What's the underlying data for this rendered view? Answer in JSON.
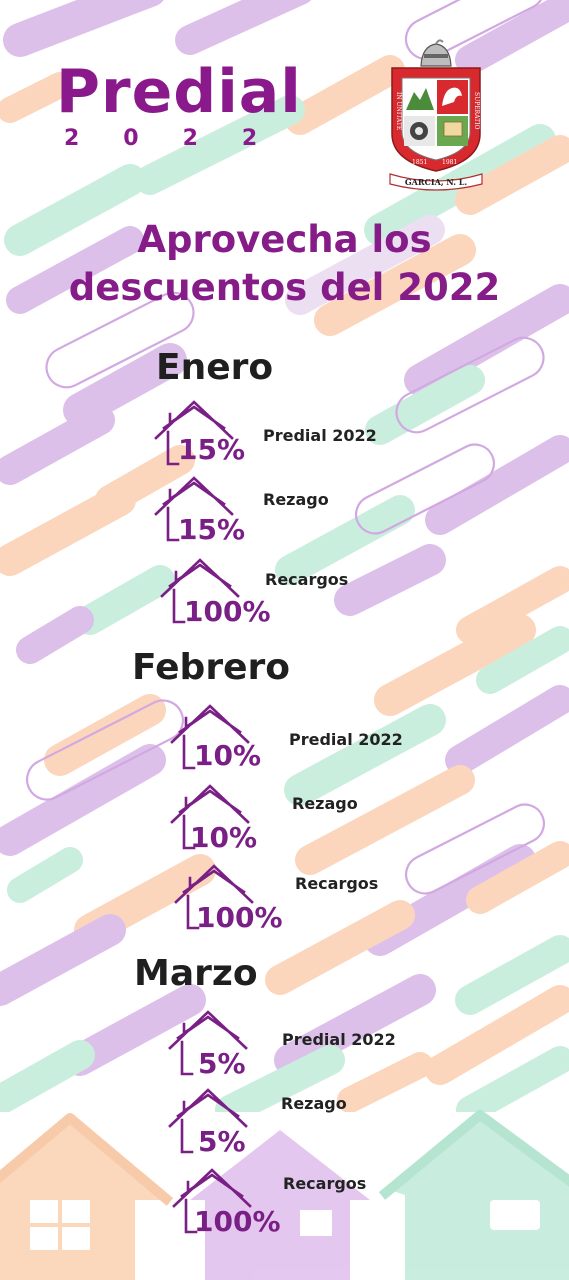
{
  "header": {
    "title": "Predial",
    "year": "2022",
    "headline_line1": "Aprovecha los",
    "headline_line2": "descuentos del 2022"
  },
  "logo": {
    "motto_left": "IN UNITATE",
    "motto_right": "SUPERATIO",
    "year_left": "1851",
    "year_right": "1981",
    "ribbon": "GARCIA, N. L."
  },
  "months": [
    {
      "name": "Enero",
      "discounts": [
        {
          "percent": "15%",
          "label": "Predial 2022"
        },
        {
          "percent": "15%",
          "label": "Rezago"
        },
        {
          "percent": "100%",
          "label": "Recargos"
        }
      ]
    },
    {
      "name": "Febrero",
      "discounts": [
        {
          "percent": "10%",
          "label": "Predial 2022"
        },
        {
          "percent": "10%",
          "label": "Rezago"
        },
        {
          "percent": "100%",
          "label": "Recargos"
        }
      ]
    },
    {
      "name": "Marzo",
      "discounts": [
        {
          "percent": "5%",
          "label": "Predial 2022"
        },
        {
          "percent": "5%",
          "label": "Rezago"
        },
        {
          "percent": "100%",
          "label": "Recargos"
        }
      ]
    }
  ],
  "colors": {
    "purple": "#8a1a8c",
    "lavender": "#d7b3e6",
    "peach": "#fbd2b4",
    "mint": "#c6eedd"
  }
}
